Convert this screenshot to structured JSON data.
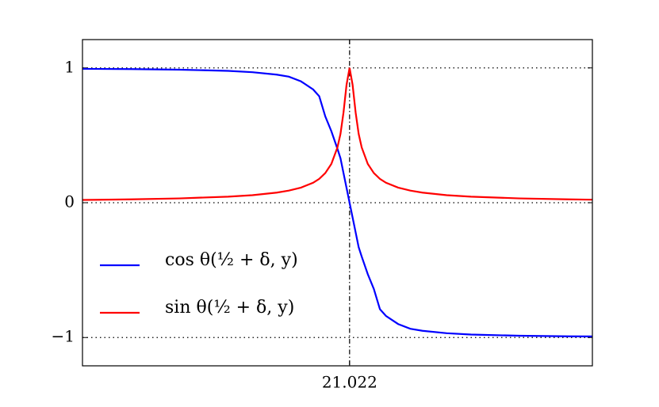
{
  "chart_data": {
    "type": "line",
    "x": [
      21.0,
      21.004,
      21.008,
      21.012,
      21.014,
      21.016,
      21.017,
      21.018,
      21.019,
      21.0195,
      21.02,
      21.0205,
      21.021,
      21.02125,
      21.0215,
      21.02175,
      21.022,
      21.02225,
      21.0225,
      21.02275,
      21.023,
      21.0235,
      21.024,
      21.0245,
      21.025,
      21.026,
      21.027,
      21.028,
      21.03,
      21.032,
      21.036,
      21.04,
      21.042
    ],
    "series": [
      {
        "name": "cos θ(½ + δ, y)",
        "color": "#0000ff",
        "values": [
          0.993,
          0.991,
          0.987,
          0.978,
          0.968,
          0.95,
          0.935,
          0.9,
          0.84,
          0.79,
          0.64,
          0.53,
          0.4,
          0.33,
          0.22,
          0.11,
          0,
          -0.11,
          -0.22,
          -0.33,
          -0.4,
          -0.53,
          -0.64,
          -0.79,
          -0.84,
          -0.9,
          -0.935,
          -0.95,
          -0.968,
          -0.978,
          -0.987,
          -0.991,
          -0.992
        ]
      },
      {
        "name": "sin θ(½ + δ, y)",
        "color": "#ff0000",
        "values": [
          0.0204,
          0.025,
          0.032,
          0.045,
          0.056,
          0.075,
          0.09,
          0.112,
          0.148,
          0.177,
          0.22,
          0.288,
          0.41,
          0.51,
          0.669,
          0.874,
          1,
          0.874,
          0.669,
          0.51,
          0.41,
          0.288,
          0.22,
          0.177,
          0.148,
          0.112,
          0.09,
          0.075,
          0.056,
          0.045,
          0.032,
          0.025,
          0.0225
        ]
      }
    ],
    "xlim": [
      21.0,
      21.042
    ],
    "xticks": [
      {
        "value": 21.022,
        "label": "21.022"
      }
    ],
    "ylim": [
      -1.21,
      1.21
    ],
    "yticks": [
      {
        "value": -1,
        "label": "−1"
      },
      0,
      1
    ],
    "grid": true,
    "legend": "lower-left"
  }
}
